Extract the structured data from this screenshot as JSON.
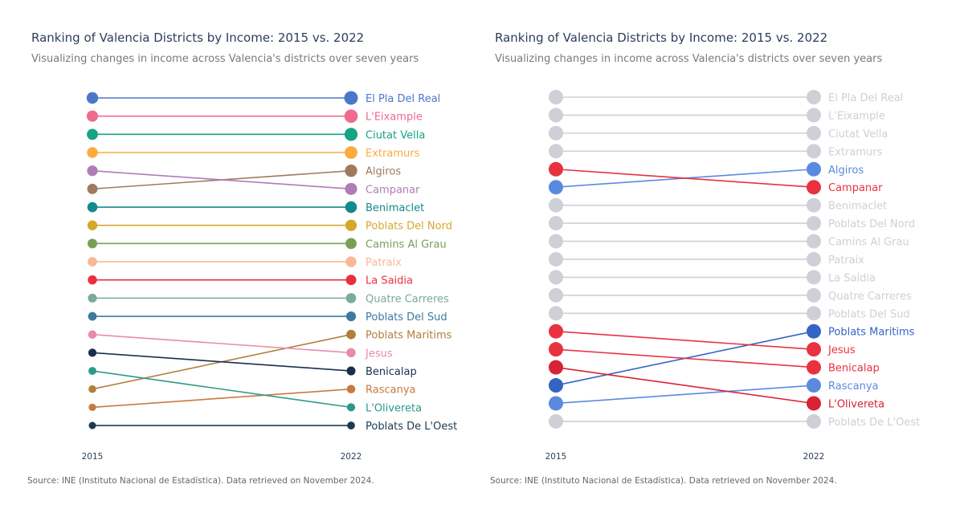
{
  "chart_data": [
    {
      "type": "slope",
      "title": "Ranking of Valencia Districts by Income: 2015 vs. 2022",
      "subtitle": "Visualizing changes in income across Valencia's districts over seven years",
      "source": "Source: INE (Instituto Nacional de Estadística). Data retrieved on November 2024.",
      "x": [
        "2015",
        "2022"
      ],
      "y_meaning": "rank (1 = highest income)",
      "series": [
        {
          "name": "El Pla Del Real",
          "values": [
            1,
            1
          ],
          "color": "#4a78c8"
        },
        {
          "name": "L'Eixample",
          "values": [
            2,
            2
          ],
          "color": "#ee6a8e"
        },
        {
          "name": "Ciutat Vella",
          "values": [
            3,
            3
          ],
          "color": "#17a385"
        },
        {
          "name": "Extramurs",
          "values": [
            4,
            4
          ],
          "color": "#fdaa3e"
        },
        {
          "name": "Algiros",
          "values": [
            6,
            5
          ],
          "color": "#a07a5e"
        },
        {
          "name": "Campanar",
          "values": [
            5,
            6
          ],
          "color": "#b07cb8"
        },
        {
          "name": "Benimaclet",
          "values": [
            7,
            7
          ],
          "color": "#138a8e"
        },
        {
          "name": "Poblats Del Nord",
          "values": [
            8,
            8
          ],
          "color": "#d4a82a"
        },
        {
          "name": "Camins Al Grau",
          "values": [
            9,
            9
          ],
          "color": "#77a055"
        },
        {
          "name": "Patraix",
          "values": [
            10,
            10
          ],
          "color": "#f8b896"
        },
        {
          "name": "La Saidia",
          "values": [
            11,
            11
          ],
          "color": "#e8303e"
        },
        {
          "name": "Quatre Carreres",
          "values": [
            12,
            12
          ],
          "color": "#7aaaa0"
        },
        {
          "name": "Poblats Del Sud",
          "values": [
            13,
            13
          ],
          "color": "#3d7aa0"
        },
        {
          "name": "Poblats Maritims",
          "values": [
            17,
            14
          ],
          "color": "#b0803a"
        },
        {
          "name": "Jesus",
          "values": [
            14,
            15
          ],
          "color": "#e88aa8"
        },
        {
          "name": "Benicalap",
          "values": [
            15,
            16
          ],
          "color": "#1a2e50"
        },
        {
          "name": "Rascanya",
          "values": [
            18,
            17
          ],
          "color": "#c87a3e"
        },
        {
          "name": "L'Olivereta",
          "values": [
            16,
            18
          ],
          "color": "#2a9a88"
        },
        {
          "name": "Poblats De L'Oest",
          "values": [
            19,
            19
          ],
          "color": "#1e3a50"
        }
      ]
    },
    {
      "type": "slope",
      "title": "Ranking of Valencia Districts by Income: 2015 vs. 2022",
      "subtitle": "Visualizing changes in income across Valencia's districts over seven years",
      "source": "Source: INE (Instituto Nacional de Estadística). Data retrieved on November 2024.",
      "x": [
        "2015",
        "2022"
      ],
      "highlight": {
        "up": "#5a8ae0",
        "down": "#e8323f",
        "unchanged": "#cfcfd8"
      },
      "series": [
        {
          "name": "El Pla Del Real",
          "values": [
            1,
            1
          ],
          "color": "#cfcfd8"
        },
        {
          "name": "L'Eixample",
          "values": [
            2,
            2
          ],
          "color": "#cfcfd8"
        },
        {
          "name": "Ciutat Vella",
          "values": [
            3,
            3
          ],
          "color": "#cfcfd8"
        },
        {
          "name": "Extramurs",
          "values": [
            4,
            4
          ],
          "color": "#cfcfd8"
        },
        {
          "name": "Algiros",
          "values": [
            6,
            5
          ],
          "color": "#5a8ae0"
        },
        {
          "name": "Campanar",
          "values": [
            5,
            6
          ],
          "color": "#e8323f"
        },
        {
          "name": "Benimaclet",
          "values": [
            7,
            7
          ],
          "color": "#cfcfd8"
        },
        {
          "name": "Poblats Del Nord",
          "values": [
            8,
            8
          ],
          "color": "#cfcfd8"
        },
        {
          "name": "Camins Al Grau",
          "values": [
            9,
            9
          ],
          "color": "#cfcfd8"
        },
        {
          "name": "Patraix",
          "values": [
            10,
            10
          ],
          "color": "#cfcfd8"
        },
        {
          "name": "La Saidia",
          "values": [
            11,
            11
          ],
          "color": "#cfcfd8"
        },
        {
          "name": "Quatre Carreres",
          "values": [
            12,
            12
          ],
          "color": "#cfcfd8"
        },
        {
          "name": "Poblats Del Sud",
          "values": [
            13,
            13
          ],
          "color": "#cfcfd8"
        },
        {
          "name": "Poblats Maritims",
          "values": [
            17,
            14
          ],
          "color": "#3464c4"
        },
        {
          "name": "Jesus",
          "values": [
            14,
            15
          ],
          "color": "#e8323f"
        },
        {
          "name": "Benicalap",
          "values": [
            15,
            16
          ],
          "color": "#e8323f"
        },
        {
          "name": "Rascanya",
          "values": [
            18,
            17
          ],
          "color": "#5a8ae0"
        },
        {
          "name": "L'Olivereta",
          "values": [
            16,
            18
          ],
          "color": "#d72335"
        },
        {
          "name": "Poblats De L'Oest",
          "values": [
            19,
            19
          ],
          "color": "#cfcfd8"
        }
      ]
    }
  ]
}
